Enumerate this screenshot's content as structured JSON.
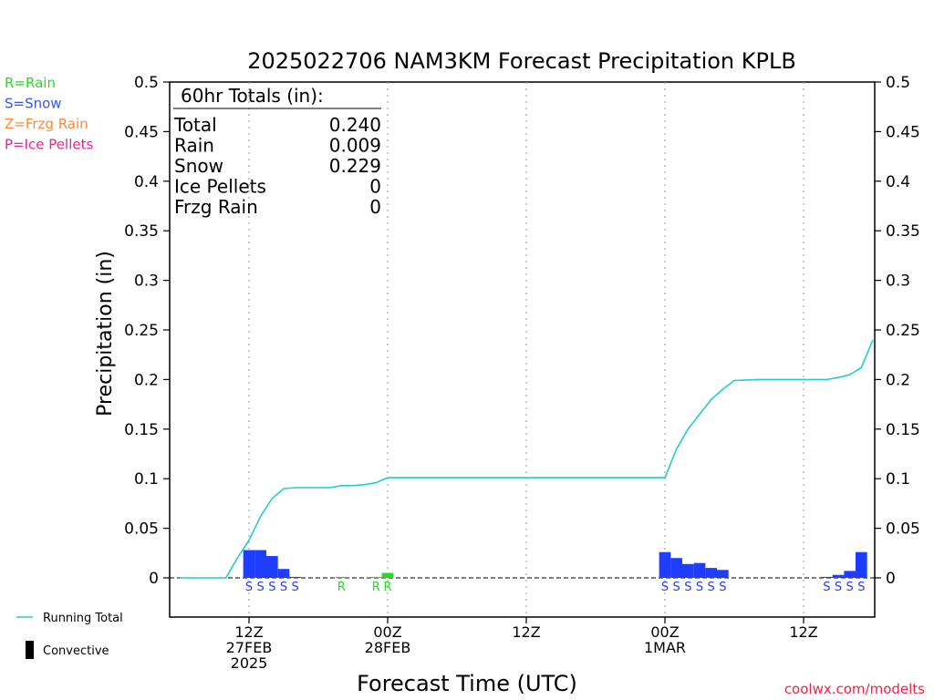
{
  "chart_data": {
    "type": "bar",
    "title": "2025022706 NAM3KM Forecast Precipitation KPLB",
    "xlabel": "Forecast Time (UTC)",
    "ylabel": "Precipitation (in)",
    "ylim": [
      -0.04,
      0.5
    ],
    "y_ticks": [
      "0.5",
      "0.45",
      "0.4",
      "0.35",
      "0.3",
      "0.25",
      "0.2",
      "0.15",
      "0.1",
      "0.05",
      "0"
    ],
    "x_unit": "forecast hour",
    "x_range": [
      0,
      60
    ],
    "x_ticks": [
      {
        "hour": 6,
        "lines": [
          "12Z",
          "27FEB",
          "2025"
        ]
      },
      {
        "hour": 18,
        "lines": [
          "00Z",
          "28FEB"
        ]
      },
      {
        "hour": 30,
        "lines": [
          "12Z"
        ]
      },
      {
        "hour": 42,
        "lines": [
          "00Z",
          "1MAR"
        ]
      },
      {
        "hour": 54,
        "lines": [
          "12Z"
        ]
      }
    ],
    "grid": "vertical dotted at tick marks",
    "legend_types": [
      {
        "label": "R=Rain",
        "color": "#22dd22"
      },
      {
        "label": "S=Snow",
        "color": "#3355ff"
      },
      {
        "label": "Z=Frzg Rain",
        "color": "#ff8833"
      },
      {
        "label": "P=Ice Pellets",
        "color": "#ee2288"
      }
    ],
    "legend_lines": [
      {
        "label": "Running Total",
        "color": "#22cccc"
      },
      {
        "label": "Convective",
        "color": "#000000"
      }
    ],
    "totals": {
      "header": "60hr Totals (in):",
      "rows": [
        {
          "label": "Total",
          "value": "0.240"
        },
        {
          "label": "Rain",
          "value": "0.009"
        },
        {
          "label": "Snow",
          "value": "0.229"
        },
        {
          "label": "Ice Pellets",
          "value": "0"
        },
        {
          "label": "Frzg Rain",
          "value": "0"
        }
      ]
    },
    "bars": [
      {
        "hour": 6,
        "value": 0.028,
        "type": "S"
      },
      {
        "hour": 7,
        "value": 0.028,
        "type": "S"
      },
      {
        "hour": 8,
        "value": 0.022,
        "type": "S"
      },
      {
        "hour": 9,
        "value": 0.009,
        "type": "S"
      },
      {
        "hour": 10,
        "value": 0.001,
        "type": "S"
      },
      {
        "hour": 14,
        "value": 0.001,
        "type": "R"
      },
      {
        "hour": 17,
        "value": 0.001,
        "type": "R"
      },
      {
        "hour": 18,
        "value": 0.005,
        "type": "R"
      },
      {
        "hour": 42,
        "value": 0.026,
        "type": "S"
      },
      {
        "hour": 43,
        "value": 0.02,
        "type": "S"
      },
      {
        "hour": 44,
        "value": 0.014,
        "type": "S"
      },
      {
        "hour": 45,
        "value": 0.015,
        "type": "S"
      },
      {
        "hour": 46,
        "value": 0.01,
        "type": "S"
      },
      {
        "hour": 47,
        "value": 0.008,
        "type": "S"
      },
      {
        "hour": 56,
        "value": 0.001,
        "type": "S"
      },
      {
        "hour": 57,
        "value": 0.003,
        "type": "S"
      },
      {
        "hour": 58,
        "value": 0.007,
        "type": "S"
      },
      {
        "hour": 59,
        "value": 0.026,
        "type": "S"
      }
    ],
    "running_total": {
      "x": [
        0,
        4,
        5,
        6,
        7,
        8,
        9,
        10,
        11,
        12,
        13,
        14,
        15,
        16,
        17,
        18,
        19,
        20,
        30,
        40,
        41,
        42,
        43,
        44,
        45,
        46,
        47,
        48,
        50,
        52,
        53,
        54,
        55,
        56,
        57,
        58,
        59,
        60
      ],
      "y": [
        0,
        0,
        0.02,
        0.038,
        0.062,
        0.08,
        0.09,
        0.091,
        0.091,
        0.091,
        0.091,
        0.093,
        0.093,
        0.094,
        0.096,
        0.101,
        0.101,
        0.101,
        0.101,
        0.101,
        0.101,
        0.101,
        0.13,
        0.15,
        0.165,
        0.18,
        0.19,
        0.199,
        0.2,
        0.2,
        0.2,
        0.2,
        0.2,
        0.2,
        0.202,
        0.205,
        0.212,
        0.24
      ]
    },
    "colors": {
      "rain": "#22dd22",
      "snow": "#1f3dff",
      "running_total": "#22cccc",
      "axis": "#000000",
      "grid": "#999999"
    }
  },
  "credit": "coolwx.com/modelts"
}
